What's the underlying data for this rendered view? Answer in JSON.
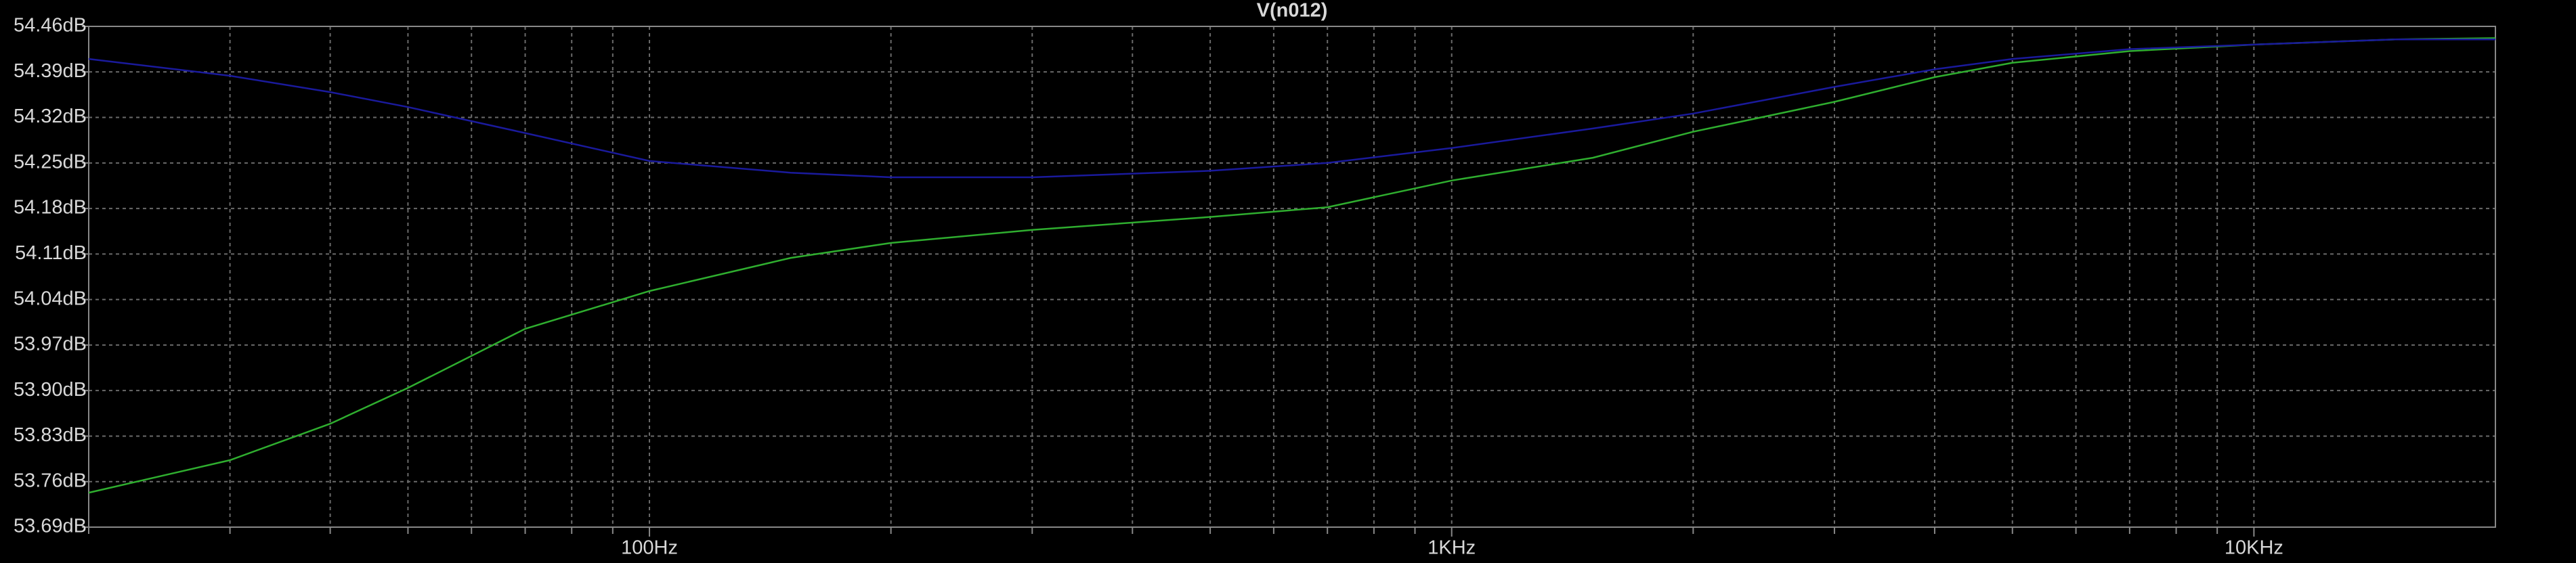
{
  "chart_data": {
    "type": "line",
    "title": "V(n012)",
    "title_color": "#2ee82e",
    "x": [
      20,
      30,
      40,
      50,
      70,
      100,
      150,
      200,
      300,
      500,
      700,
      1000,
      1500,
      2000,
      3000,
      4000,
      5000,
      7000,
      10000,
      15000,
      20000
    ],
    "series": [
      {
        "color": "#2fae2f",
        "values": [
          53.743,
          53.793,
          53.849,
          53.904,
          53.995,
          54.053,
          54.104,
          54.127,
          54.147,
          54.167,
          54.182,
          54.223,
          54.258,
          54.298,
          54.344,
          54.382,
          54.404,
          54.422,
          54.432,
          54.44,
          54.442
        ]
      },
      {
        "color": "#1a1a9c",
        "values": [
          54.41,
          54.384,
          54.359,
          54.336,
          54.296,
          54.253,
          54.235,
          54.228,
          54.228,
          54.238,
          54.25,
          54.273,
          54.303,
          54.326,
          54.367,
          54.394,
          54.41,
          54.425,
          54.432,
          54.44,
          54.44
        ]
      }
    ],
    "xlog": true,
    "xlim": [
      20,
      20000
    ],
    "xticks": [
      {
        "value": 100,
        "label": "100Hz"
      },
      {
        "value": 1000,
        "label": "1KHz"
      },
      {
        "value": 10000,
        "label": "10KHz"
      }
    ],
    "xticks_minor": [
      20,
      30,
      40,
      50,
      60,
      70,
      80,
      90,
      200,
      300,
      400,
      500,
      600,
      700,
      800,
      900,
      2000,
      3000,
      4000,
      5000,
      6000,
      7000,
      8000,
      9000
    ],
    "ylim": [
      53.69,
      54.46
    ],
    "yticks": [
      {
        "value": 53.69,
        "label": "53.69dB"
      },
      {
        "value": 53.76,
        "label": "53.76dB"
      },
      {
        "value": 53.83,
        "label": "53.83dB"
      },
      {
        "value": 53.9,
        "label": "53.90dB"
      },
      {
        "value": 53.97,
        "label": "53.97dB"
      },
      {
        "value": 54.04,
        "label": "54.04dB"
      },
      {
        "value": 54.11,
        "label": "54.11dB"
      },
      {
        "value": 54.18,
        "label": "54.18dB"
      },
      {
        "value": 54.25,
        "label": "54.25dB"
      },
      {
        "value": 54.32,
        "label": "54.32dB"
      },
      {
        "value": 54.39,
        "label": "54.39dB"
      },
      {
        "value": 54.46,
        "label": "54.46dB"
      }
    ],
    "grid": true
  }
}
